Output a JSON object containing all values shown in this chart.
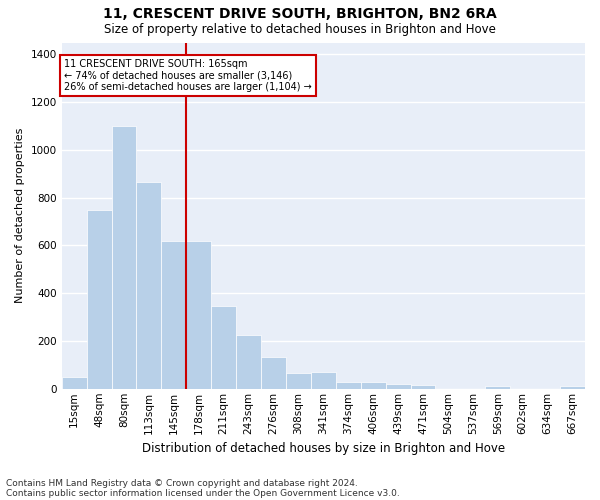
{
  "title1": "11, CRESCENT DRIVE SOUTH, BRIGHTON, BN2 6RA",
  "title2": "Size of property relative to detached houses in Brighton and Hove",
  "xlabel": "Distribution of detached houses by size in Brighton and Hove",
  "ylabel": "Number of detached properties",
  "footnote1": "Contains HM Land Registry data © Crown copyright and database right 2024.",
  "footnote2": "Contains public sector information licensed under the Open Government Licence v3.0.",
  "annotation_line1": "11 CRESCENT DRIVE SOUTH: 165sqm",
  "annotation_line2": "← 74% of detached houses are smaller (3,146)",
  "annotation_line3": "26% of semi-detached houses are larger (1,104) →",
  "property_size_idx": 4,
  "bar_color": "#b8d0e8",
  "highlight_line_color": "#cc0000",
  "background_color": "#e8eef8",
  "categories": [
    "15sqm",
    "48sqm",
    "80sqm",
    "113sqm",
    "145sqm",
    "178sqm",
    "211sqm",
    "243sqm",
    "276sqm",
    "308sqm",
    "341sqm",
    "374sqm",
    "406sqm",
    "439sqm",
    "471sqm",
    "504sqm",
    "537sqm",
    "569sqm",
    "602sqm",
    "634sqm",
    "667sqm"
  ],
  "values": [
    50,
    750,
    1100,
    865,
    620,
    620,
    345,
    225,
    135,
    65,
    70,
    30,
    30,
    20,
    15,
    0,
    0,
    12,
    0,
    0,
    12
  ],
  "ylim": [
    0,
    1450
  ],
  "yticks": [
    0,
    200,
    400,
    600,
    800,
    1000,
    1200,
    1400
  ],
  "title1_fontsize": 10,
  "title2_fontsize": 8.5,
  "ylabel_fontsize": 8,
  "xlabel_fontsize": 8.5,
  "tick_fontsize": 7.5,
  "footnote_fontsize": 6.5
}
